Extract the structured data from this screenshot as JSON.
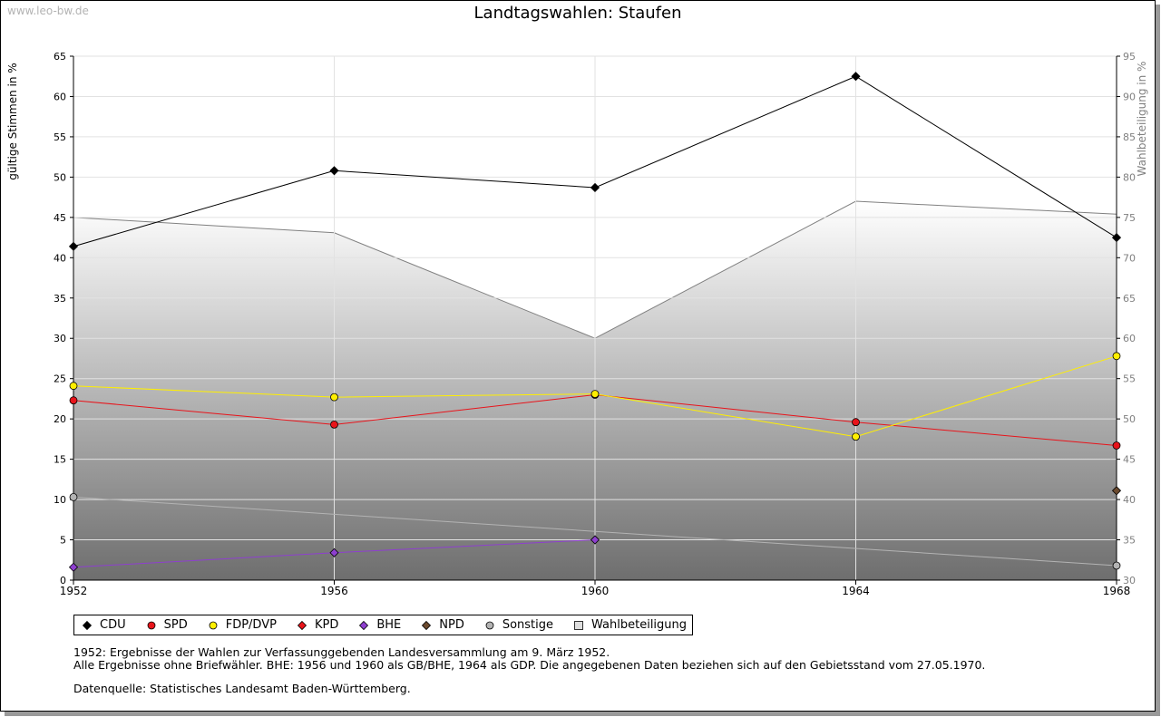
{
  "watermark": "www.leo-bw.de",
  "notes": [
    "1952: Ergebnisse der Wahlen zur Verfassunggebenden Landesversammlung am 9. März 1952.",
    "Alle Ergebnisse ohne Briefwähler. BHE: 1956 und 1960 als GB/BHE, 1964 als GDP. Die angegebenen Daten beziehen sich auf den Gebietsstand vom 27.05.1970.",
    "",
    "Datenquelle: Statistisches Landesamt Baden-Württemberg."
  ],
  "chart_data": {
    "type": "line",
    "title": "Landtagswahlen: Staufen",
    "ylabel": "gültige Stimmen in %",
    "y2label": "Wahlbeteiligung in %",
    "x": [
      1952,
      1956,
      1960,
      1964,
      1968
    ],
    "x_ticks": [
      "1952",
      "1956",
      "1960",
      "1964",
      "1968"
    ],
    "ylim": [
      0,
      65
    ],
    "y_ticks": [
      "0",
      "5",
      "10",
      "15",
      "20",
      "25",
      "30",
      "35",
      "40",
      "45",
      "50",
      "55",
      "60",
      "65"
    ],
    "y2lim": [
      30,
      95
    ],
    "y2_ticks": [
      "30",
      "35",
      "40",
      "45",
      "50",
      "55",
      "60",
      "65",
      "70",
      "75",
      "80",
      "85",
      "90",
      "95"
    ],
    "legend_position": "bottom",
    "grid": true,
    "series": [
      {
        "name": "CDU",
        "color": "#000000",
        "marker": "diamond",
        "values": [
          41.4,
          50.8,
          48.7,
          62.5,
          42.5
        ]
      },
      {
        "name": "SPD",
        "color": "#e8141b",
        "marker": "circle",
        "values": [
          22.3,
          19.3,
          23.0,
          19.6,
          16.7
        ]
      },
      {
        "name": "FDP/DVP",
        "color": "#ffef00",
        "marker": "circle",
        "values": [
          24.1,
          22.7,
          23.1,
          17.8,
          27.8
        ]
      },
      {
        "name": "KPD",
        "color": "#e8141b",
        "marker": "diamond",
        "values": [
          null,
          null,
          null,
          null,
          null
        ]
      },
      {
        "name": "BHE",
        "color": "#8e3fcf",
        "marker": "diamond",
        "values": [
          1.6,
          3.4,
          5.0,
          null,
          null
        ]
      },
      {
        "name": "NPD",
        "color": "#6b4a2e",
        "marker": "diamond",
        "values": [
          null,
          null,
          null,
          null,
          11.1
        ]
      },
      {
        "name": "Sonstige",
        "color": "#b3b3b3",
        "marker": "circle",
        "values": [
          10.3,
          null,
          null,
          null,
          1.8
        ]
      },
      {
        "name": "Wahlbeteiligung",
        "color": "#808080",
        "marker": "square",
        "axis": "right",
        "values": [
          75.0,
          73.1,
          60.0,
          77.0,
          75.4
        ]
      }
    ]
  }
}
